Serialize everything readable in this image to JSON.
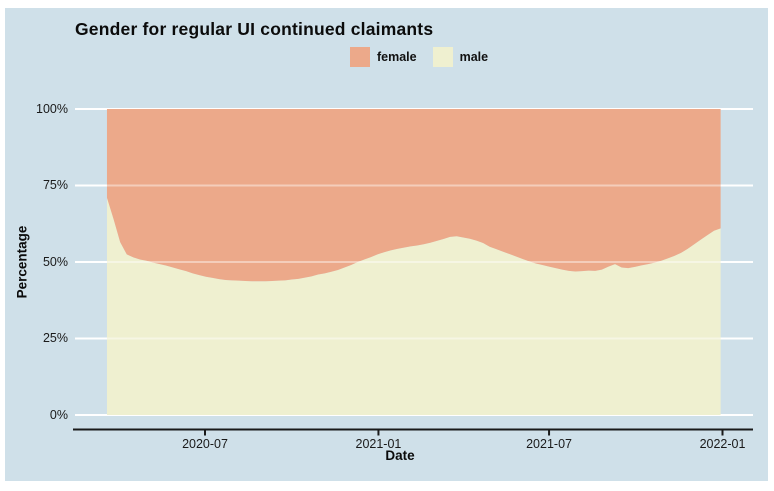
{
  "figure": {
    "title": "Gender for regular UI continued claimants",
    "x_axis_label": "Date",
    "y_axis_label": "Percentage",
    "background": "#FFFFFF",
    "panel_background": "#CFE0E9",
    "gridline_color": "#FFFFFF",
    "axis_line_color": "#1A1A1A"
  },
  "legend": {
    "position": "top-center",
    "items": [
      {
        "label": "female",
        "color": "#ECA98A"
      },
      {
        "label": "male",
        "color": "#EFF0D0"
      }
    ]
  },
  "chart_data": {
    "type": "area",
    "stacked": true,
    "stack_total": 100,
    "title": "Gender for regular UI continued claimants",
    "xlabel": "Date",
    "ylabel": "Percentage",
    "ylim": [
      0,
      100
    ],
    "grid": true,
    "x_ticks": [
      "2020-07",
      "2021-01",
      "2021-07",
      "2022-01"
    ],
    "y_ticks": [
      "0%",
      "25%",
      "50%",
      "75%",
      "100%"
    ],
    "y_tick_values": [
      0,
      25,
      50,
      75,
      100
    ],
    "x": [
      "2020-03-19",
      "2020-03-26",
      "2020-04-02",
      "2020-04-09",
      "2020-04-16",
      "2020-04-23",
      "2020-04-30",
      "2020-05-07",
      "2020-05-14",
      "2020-05-21",
      "2020-05-28",
      "2020-06-04",
      "2020-06-11",
      "2020-06-18",
      "2020-06-25",
      "2020-07-02",
      "2020-07-09",
      "2020-07-16",
      "2020-07-23",
      "2020-07-30",
      "2020-08-06",
      "2020-08-13",
      "2020-08-20",
      "2020-08-27",
      "2020-09-03",
      "2020-09-10",
      "2020-09-17",
      "2020-09-24",
      "2020-10-01",
      "2020-10-08",
      "2020-10-15",
      "2020-10-22",
      "2020-10-29",
      "2020-11-05",
      "2020-11-12",
      "2020-11-19",
      "2020-11-26",
      "2020-12-03",
      "2020-12-10",
      "2020-12-17",
      "2020-12-24",
      "2020-12-31",
      "2021-01-07",
      "2021-01-14",
      "2021-01-21",
      "2021-01-28",
      "2021-02-04",
      "2021-02-11",
      "2021-02-18",
      "2021-02-25",
      "2021-03-04",
      "2021-03-11",
      "2021-03-18",
      "2021-03-25",
      "2021-04-01",
      "2021-04-08",
      "2021-04-15",
      "2021-04-22",
      "2021-04-29",
      "2021-05-06",
      "2021-05-13",
      "2021-05-20",
      "2021-05-27",
      "2021-06-03",
      "2021-06-10",
      "2021-06-17",
      "2021-06-24",
      "2021-07-01",
      "2021-07-08",
      "2021-07-15",
      "2021-07-22",
      "2021-07-29",
      "2021-08-05",
      "2021-08-12",
      "2021-08-19",
      "2021-08-26",
      "2021-09-02",
      "2021-09-09",
      "2021-09-16",
      "2021-09-23",
      "2021-09-30",
      "2021-10-07",
      "2021-10-14",
      "2021-10-21",
      "2021-10-28",
      "2021-11-04",
      "2021-11-11",
      "2021-11-18",
      "2021-11-25",
      "2021-12-02",
      "2021-12-09",
      "2021-12-16",
      "2021-12-23",
      "2021-12-30"
    ],
    "series": [
      {
        "name": "female",
        "color": "#ECA98A",
        "values": [
          29.0,
          36.0,
          43.5,
          47.5,
          48.5,
          49.2,
          49.6,
          50.2,
          50.7,
          51.2,
          51.8,
          52.4,
          53.0,
          53.7,
          54.3,
          54.8,
          55.2,
          55.6,
          55.9,
          56.0,
          56.1,
          56.2,
          56.3,
          56.3,
          56.3,
          56.2,
          56.1,
          56.0,
          55.7,
          55.5,
          55.1,
          54.7,
          54.1,
          53.7,
          53.2,
          52.6,
          51.8,
          51.0,
          50.0,
          49.2,
          48.4,
          47.5,
          46.8,
          46.2,
          45.7,
          45.3,
          44.9,
          44.6,
          44.2,
          43.7,
          43.1,
          42.5,
          41.8,
          41.6,
          42.0,
          42.4,
          43.0,
          43.8,
          45.0,
          45.8,
          46.6,
          47.4,
          48.2,
          49.0,
          49.8,
          50.5,
          51.0,
          51.5,
          52.0,
          52.5,
          52.9,
          53.1,
          53.0,
          52.8,
          52.9,
          52.5,
          51.5,
          50.7,
          51.8,
          52.0,
          51.6,
          51.1,
          50.7,
          50.2,
          49.6,
          48.8,
          48.0,
          47.0,
          45.7,
          44.2,
          42.7,
          41.2,
          39.8,
          39.0
        ]
      },
      {
        "name": "male",
        "color": "#EFF0D0",
        "values": [
          71.0,
          64.0,
          56.5,
          52.5,
          51.5,
          50.8,
          50.4,
          49.8,
          49.3,
          48.8,
          48.2,
          47.6,
          47.0,
          46.3,
          45.7,
          45.2,
          44.8,
          44.4,
          44.1,
          44.0,
          43.9,
          43.8,
          43.7,
          43.7,
          43.7,
          43.8,
          43.9,
          44.0,
          44.3,
          44.5,
          44.9,
          45.3,
          45.9,
          46.3,
          46.8,
          47.4,
          48.2,
          49.0,
          50.0,
          50.8,
          51.6,
          52.5,
          53.2,
          53.8,
          54.3,
          54.7,
          55.1,
          55.4,
          55.8,
          56.3,
          56.9,
          57.5,
          58.2,
          58.4,
          58.0,
          57.6,
          57.0,
          56.2,
          55.0,
          54.2,
          53.4,
          52.6,
          51.8,
          51.0,
          50.2,
          49.5,
          49.0,
          48.5,
          48.0,
          47.5,
          47.1,
          46.9,
          47.0,
          47.2,
          47.1,
          47.5,
          48.5,
          49.3,
          48.2,
          48.0,
          48.4,
          48.9,
          49.3,
          49.8,
          50.4,
          51.2,
          52.0,
          53.0,
          54.3,
          55.8,
          57.3,
          58.8,
          60.2,
          61.0
        ]
      }
    ],
    "legend_entries": [
      "female",
      "male"
    ]
  }
}
